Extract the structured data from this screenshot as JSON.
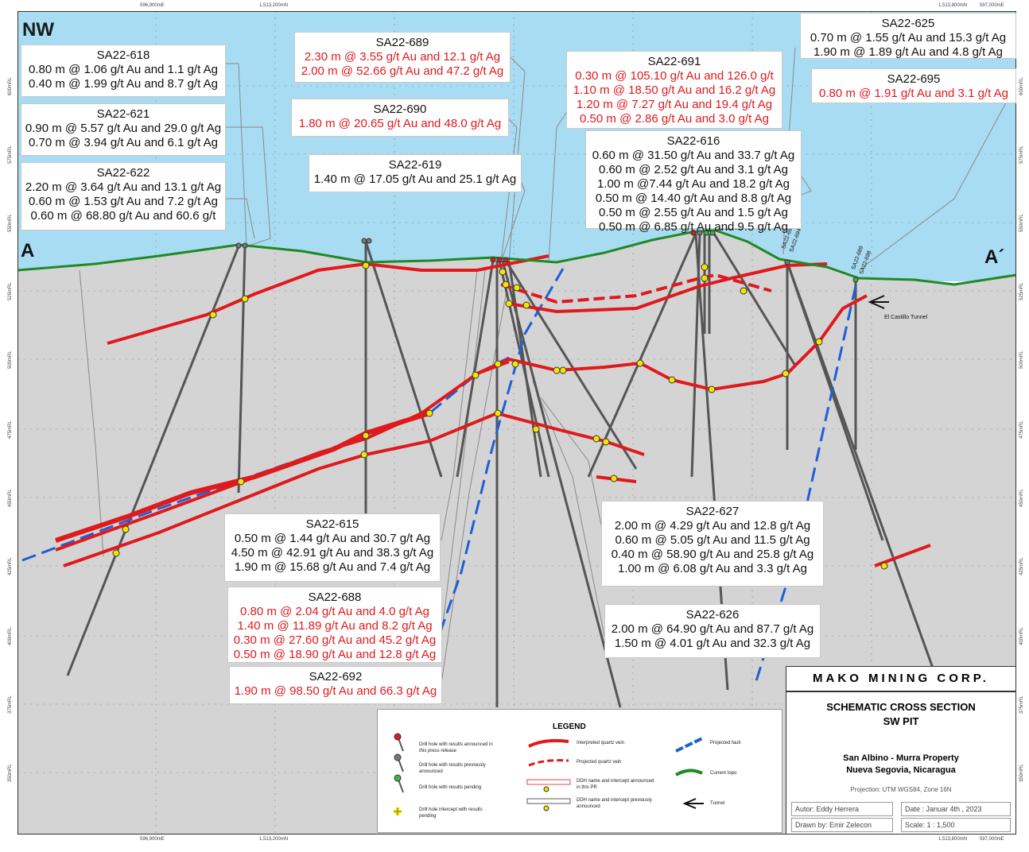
{
  "nw_label": "NW",
  "section_start": "A",
  "section_end": "A´",
  "tunnel_label": "El Castillo Tunnel",
  "collar_label_683": "SA22-683",
  "collar_labels_right": [
    "SA22-687",
    "SA22-694",
    "SA22-689",
    "SA22-698"
  ],
  "coords": {
    "top": [
      "596,900mE",
      "1,513,200mN",
      "1,513,800mN",
      "597,000mE"
    ],
    "bottom": [
      "596,900mE",
      "1,513,200mN",
      "1,513,800mN",
      "597,000mE"
    ],
    "left_rl": [
      "600mRL",
      "575mRL",
      "550mRL",
      "525mRL",
      "500mRL",
      "475mRL",
      "450mRL",
      "425mRL",
      "400mRL",
      "375mRL",
      "350mRL"
    ],
    "right_rl": [
      "600mRL",
      "575mRL",
      "550mRL",
      "525mRL",
      "500mRL",
      "475mRL",
      "450mRL",
      "425mRL",
      "400mRL",
      "375mRL",
      "350mRL"
    ]
  },
  "intercepts": {
    "sa22_618": {
      "hole": "SA22-618",
      "lines": [
        "0.80 m @ 1.06 g/t Au and 1.1 g/t Ag",
        "0.40 m @ 1.99 g/t Au and 8.7 g/t Ag"
      ]
    },
    "sa22_621": {
      "hole": "SA22-621",
      "lines": [
        "0.90 m @ 5.57 g/t Au and 29.0 g/t Ag",
        "0.70 m @ 3.94 g/t Au and 6.1 g/t Ag"
      ]
    },
    "sa22_622": {
      "hole": "SA22-622",
      "lines": [
        "2.20 m @ 3.64 g/t Au and 13.1 g/t Ag",
        "0.60 m @ 1.53 g/t Au and 7.2 g/t Ag",
        "0.60 m @ 68.80 g/t Au and 60.6 g/t"
      ]
    },
    "sa22_689": {
      "hole": "SA22-689",
      "lines": [
        "2.30 m @ 3.55 g/t Au and 12.1 g/t Ag",
        "2.00 m @ 52.66 g/t Au and 47.2 g/t Ag"
      ]
    },
    "sa22_690": {
      "hole": "SA22-690",
      "lines": [
        "1.80 m @ 20.65 g/t Au and 48.0 g/t Ag"
      ]
    },
    "sa22_619": {
      "hole": "SA22-619",
      "lines": [
        "1.40 m @ 17.05 g/t Au and 25.1 g/t Ag"
      ]
    },
    "sa22_691": {
      "hole": "SA22-691",
      "lines": [
        "0.30 m @ 105.10 g/t Au and 126.0 g/t",
        "1.10 m @ 18.50 g/t Au and 16.2 g/t Ag",
        "1.20 m @ 7.27 g/t Au and 19.4 g/t Ag",
        "0.50 m @ 2.86 g/t Au and 3.0 g/t Ag"
      ]
    },
    "sa22_616": {
      "hole": "SA22-616",
      "lines": [
        "0.60 m @ 31.50 g/t Au and 33.7 g/t Ag",
        "0.60 m @ 2.52 g/t Au and 3.1 g/t Ag",
        "1.00 m @7.44 g/t Au and 18.2 g/t Ag",
        "0.50 m @ 14.40 g/t Au and 8.8 g/t Ag",
        "0.50 m @ 2.55 g/t Au and 1.5 g/t Ag",
        "0.50 m @ 6.85 g/t Au and 9.5 g/t Ag"
      ]
    },
    "sa22_625": {
      "hole": "SA22-625",
      "lines": [
        "0.70 m @ 1.55 g/t Au and 15.3 g/t Ag",
        "1.90 m @ 1.89 g/t Au and 4.8 g/t Ag"
      ]
    },
    "sa22_695": {
      "hole": "SA22-695",
      "lines": [
        "0.80 m @ 1.91 g/t Au and 3.1 g/t Ag"
      ]
    },
    "sa22_615": {
      "hole": "SA22-615",
      "lines": [
        "0.50 m @ 1.44 g/t Au and 30.7 g/t Ag",
        "4.50 m @ 42.91 g/t Au and 38.3 g/t Ag",
        "1.90 m @ 15.68 g/t Au and 7.4 g/t Ag"
      ]
    },
    "sa22_688": {
      "hole": "SA22-688",
      "lines": [
        "0.80 m @ 2.04 g/t Au and 4.0 g/t Ag",
        "1.40 m @ 11.89 g/t Au and 8.2 g/t Ag",
        "0.30 m @ 27.60 g/t Au and 45.2 g/t Ag",
        "0.50 m @ 18.90 g/t Au and 12.8 g/t Ag"
      ]
    },
    "sa22_692": {
      "hole": "SA22-692",
      "lines": [
        "1.90 m @ 98.50 g/t Au and 66.3 g/t Ag"
      ]
    },
    "sa22_627": {
      "hole": "SA22-627",
      "lines": [
        "2.00 m @ 4.29 g/t Au and 12.8 g/t Ag",
        "0.60 m @ 5.05 g/t Au and 11.5 g/t Ag",
        "0.40 m @ 58.90 g/t Au and 25.8 g/t Ag",
        "1.00 m @ 6.08 g/t Au and 3.3 g/t Ag"
      ]
    },
    "sa22_626": {
      "hole": "SA22-626",
      "lines": [
        "2.00 m @ 64.90 g/t Au and 87.7 g/t Ag",
        "1.50 m @ 4.01 g/t Au and 32.3 g/t Ag"
      ]
    }
  },
  "legend": {
    "title": "LEGEND",
    "items": [
      "Drill hole with results announced in this press release",
      "Drill hole with results previously announced",
      "Drill hole with results pending",
      "Drill hole intercept with results pending",
      "Interpreted quartz vein",
      "Projected quartz vein",
      "DDH name and intercept announced in this PR",
      "DDH name and intercept previously announced",
      "Projected fault",
      "Current topo",
      "Tunnel"
    ]
  },
  "title_block": {
    "company": "MAKO MINING CORP.",
    "title_line1": "SCHEMATIC CROSS SECTION",
    "title_line2": "SW PIT",
    "property": "San Albino - Murra Property",
    "location": "Nueva Segovia, Nicaragua",
    "projection": "Projection: UTM WGS84, Zone 16N",
    "author": "Autor: Eddy Herrera",
    "date": "Date : Januar 4th , 2023",
    "drawn": "Drawn by: Emir Zelecon",
    "scale": "Scale: 1 : 1,500"
  },
  "colors": {
    "sky": "#a8dcf2",
    "ground": "#d4d4d4",
    "topo": "#1f8a24",
    "vein": "#e0191d",
    "fault": "#1f5fd6",
    "hole": "#555555",
    "intercept": "#f2e600",
    "red_text": "#e0191d"
  }
}
